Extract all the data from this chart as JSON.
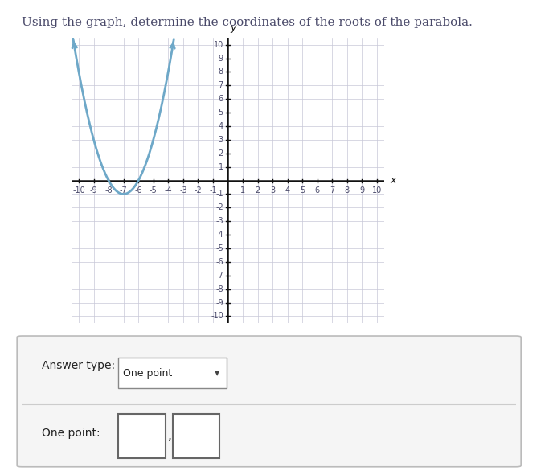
{
  "title": "Using the graph, determine the coordinates of the roots of the parabola.",
  "title_fontsize": 11,
  "title_color": "#4a4a6a",
  "xlim": [
    -10.5,
    10.5
  ],
  "ylim": [
    -10.5,
    10.5
  ],
  "xticks": [
    -10,
    -9,
    -8,
    -7,
    -6,
    -5,
    -4,
    -3,
    -2,
    -1,
    1,
    2,
    3,
    4,
    5,
    6,
    7,
    8,
    9,
    10
  ],
  "yticks": [
    -10,
    -9,
    -8,
    -7,
    -6,
    -5,
    -4,
    -3,
    -2,
    -1,
    1,
    2,
    3,
    4,
    5,
    6,
    7,
    8,
    9,
    10
  ],
  "curve_color": "#6ea8c8",
  "curve_linewidth": 2.0,
  "root1": -8,
  "root2": -6,
  "background_color": "#ffffff",
  "grid_color": "#c8c8d8",
  "axis_color": "#111111",
  "tick_label_color": "#4a4a6a",
  "tick_fontsize": 7,
  "answer_box_text": "Answer type:",
  "answer_type": "One point",
  "one_point_label": "One point:",
  "figure_width": 6.83,
  "figure_height": 5.91
}
